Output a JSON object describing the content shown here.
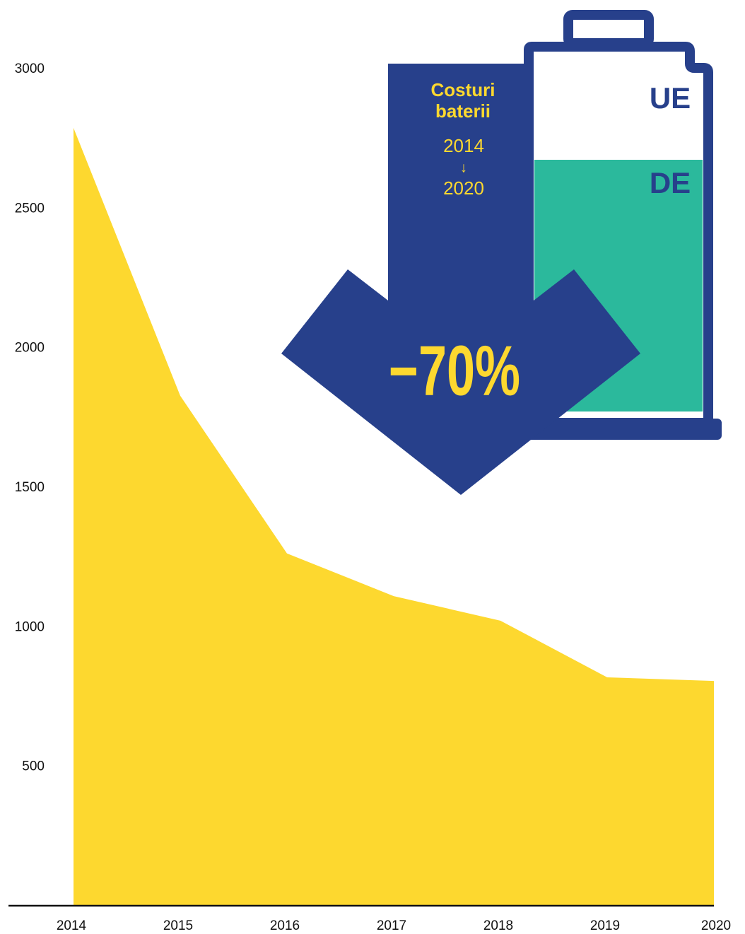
{
  "chart_data": {
    "type": "area",
    "categories": [
      "2014",
      "2015",
      "2016",
      "2017",
      "2018",
      "2019",
      "2020"
    ],
    "values": [
      2790,
      1830,
      1265,
      1112,
      1024,
      821,
      808
    ],
    "color": "#fdd82f",
    "ylim": [
      0,
      3000
    ],
    "yticks": [
      500,
      1000,
      1500,
      2000,
      2500,
      3000
    ],
    "annotations": {
      "title": "Costuri baterii",
      "from": "2014",
      "arrow": "↓",
      "to": "2020",
      "top_label": "UE",
      "bottom_label": "DE",
      "change": "−70%"
    }
  }
}
